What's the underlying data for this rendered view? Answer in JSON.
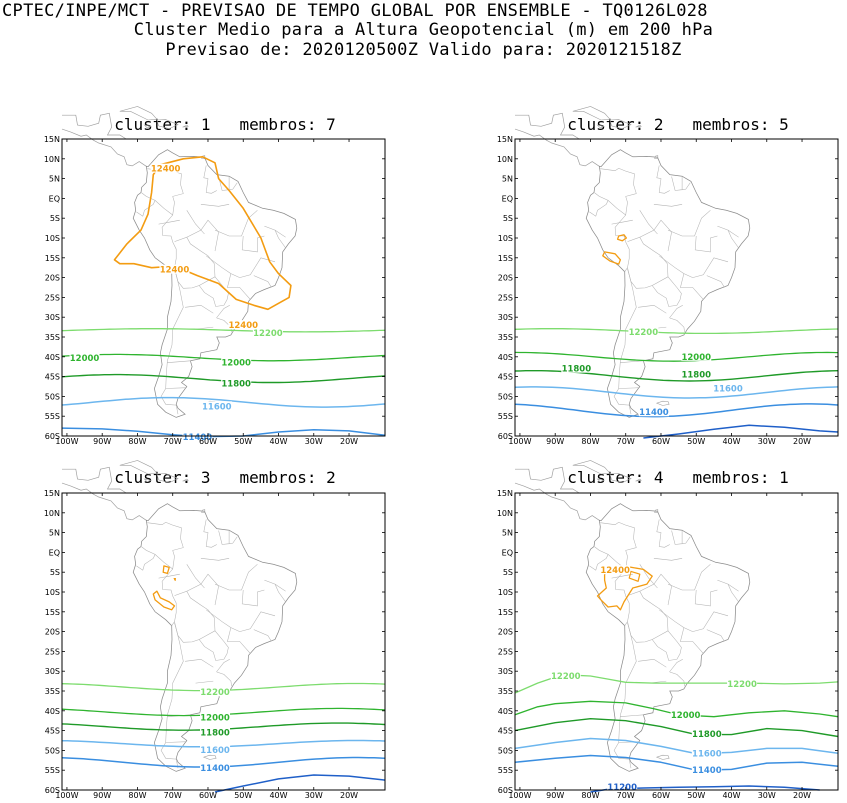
{
  "header": {
    "line1": "CPTEC/INPE/MCT - PREVISAO DE TEMPO GLOBAL POR ENSEMBLE - TQ0126L028",
    "line2": "Cluster Medio para a Altura Geopotencial (m) em 200 hPa",
    "line3": "Previsao de: 2020120500Z   Valido para: 2020121518Z"
  },
  "axes": {
    "lat_labels": [
      "15N",
      "10N",
      "5N",
      "EQ",
      "5S",
      "10S",
      "15S",
      "20S",
      "25S",
      "30S",
      "35S",
      "40S",
      "45S",
      "50S",
      "55S",
      "60S"
    ],
    "lon_labels": [
      "100W",
      "90W",
      "80W",
      "70W",
      "60W",
      "50W",
      "40W",
      "30W",
      "20W"
    ]
  },
  "colors": {
    "c12400": "#f39c12",
    "c12200": "#7ddc6e",
    "c12000": "#2fb42f",
    "c11800": "#1f9a28",
    "c11600": "#6cb6ee",
    "c11400": "#3a8ee0",
    "c11200": "#1f5fc8"
  },
  "clusters": [
    {
      "id": "1",
      "title": "cluster: 1   membros: 7",
      "labels": [
        "12400",
        "12400",
        "12400",
        "12200",
        "12000",
        "12000",
        "11800",
        "11600",
        "11400"
      ]
    },
    {
      "id": "2",
      "title": "cluster: 2   membros: 5",
      "labels": [
        "12200",
        "12000",
        "11800",
        "11800",
        "11600",
        "11400"
      ]
    },
    {
      "id": "3",
      "title": "cluster: 3   membros: 2",
      "labels": [
        "12200",
        "12000",
        "11800",
        "11600",
        "11400"
      ]
    },
    {
      "id": "4",
      "title": "cluster: 4   membros: 1",
      "labels": [
        "12400",
        "12200",
        "12200",
        "12000",
        "11800",
        "11600",
        "11400",
        "11200"
      ]
    }
  ]
}
